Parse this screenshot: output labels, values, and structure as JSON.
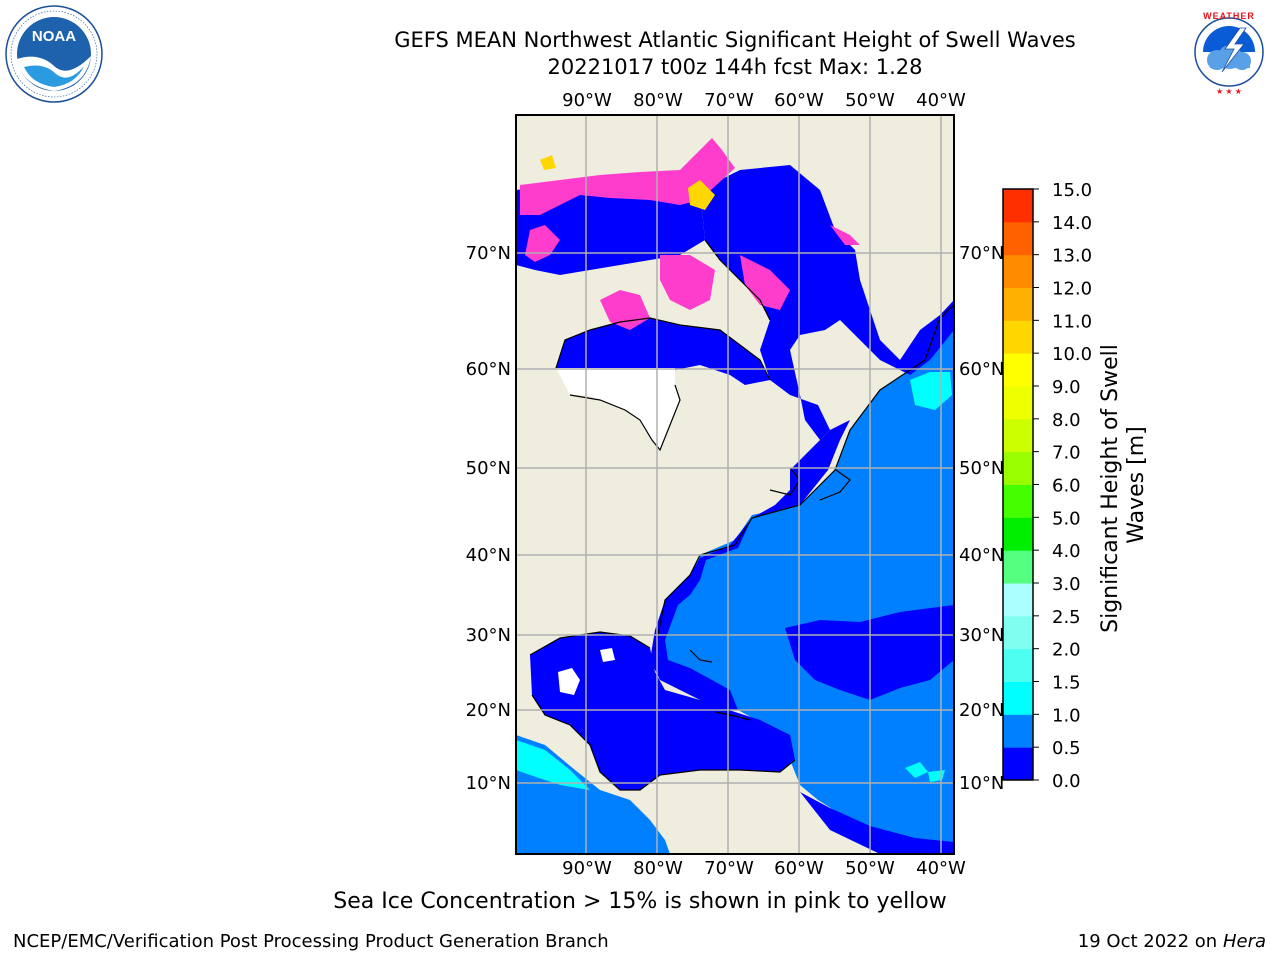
{
  "header": {
    "title_line1": "GEFS MEAN Northwest Atlantic Significant Height of Swell Waves",
    "title_line2": "20221017 t00z 144h fcst   Max: 1.28"
  },
  "logos": {
    "left": {
      "icon": "noaa-logo-icon",
      "text": "NOAA",
      "ring_text": "NATIONAL OCEANIC AND ATMOSPHERIC ADMINISTRATION · U.S. DEPARTMENT OF COMMERCE"
    },
    "right": {
      "icon": "nws-logo-icon",
      "ring_text": "NATIONAL WEATHER SERVICE"
    }
  },
  "map": {
    "lon_ticks": [
      "90°W",
      "80°W",
      "70°W",
      "60°W",
      "50°W",
      "40°W"
    ],
    "lat_ticks": [
      "70°N",
      "60°N",
      "50°N",
      "40°N",
      "30°N",
      "20°N",
      "10°N"
    ],
    "colors": {
      "land": "#efedde",
      "ocean_low": "#0000ff",
      "ocean_mid": "#0080ff",
      "cyan": "#00ffff",
      "ice_pink": "#ff3dcc",
      "ice_yellow": "#ffd700",
      "grid": "#b0b0b0"
    }
  },
  "colorbar": {
    "label": "Significant Height of Swell Waves [m]",
    "ticks": [
      "0.0",
      "0.5",
      "1.0",
      "1.5",
      "2.0",
      "2.5",
      "3.0",
      "4.0",
      "5.0",
      "6.0",
      "7.0",
      "8.0",
      "9.0",
      "10.0",
      "11.0",
      "12.0",
      "13.0",
      "14.0",
      "15.0"
    ],
    "colors": [
      "#0000ff",
      "#0080ff",
      "#00ffff",
      "#4dfff0",
      "#80fff0",
      "#aaffff",
      "#55ff80",
      "#00ee00",
      "#44ff00",
      "#99ff00",
      "#ccff00",
      "#eeff00",
      "#ffff00",
      "#ffd700",
      "#ffb000",
      "#ff8c00",
      "#ff6000",
      "#ff3000",
      "#ff0000"
    ]
  },
  "chart_data": {
    "type": "heatmap",
    "title": "GEFS MEAN Northwest Atlantic Significant Height of Swell Waves",
    "subtitle": "20221017 t00z 144h fcst   Max: 1.28",
    "max_value": 1.28,
    "units": "m",
    "colorbar_levels": [
      0.0,
      0.5,
      1.0,
      1.5,
      2.0,
      2.5,
      3.0,
      4.0,
      5.0,
      6.0,
      7.0,
      8.0,
      9.0,
      10.0,
      11.0,
      12.0,
      13.0,
      14.0,
      15.0
    ],
    "lon_range": [
      "100°W",
      "38°W"
    ],
    "lat_range": [
      "0°N",
      "80°N"
    ],
    "grid": true
  },
  "footer": {
    "note": "Sea Ice Concentration > 15% is shown in pink to yellow",
    "left": "NCEP/EMC/Verification Post Processing Product Generation Branch",
    "right_date": "19 Oct 2022 on",
    "right_machine": "Hera"
  }
}
